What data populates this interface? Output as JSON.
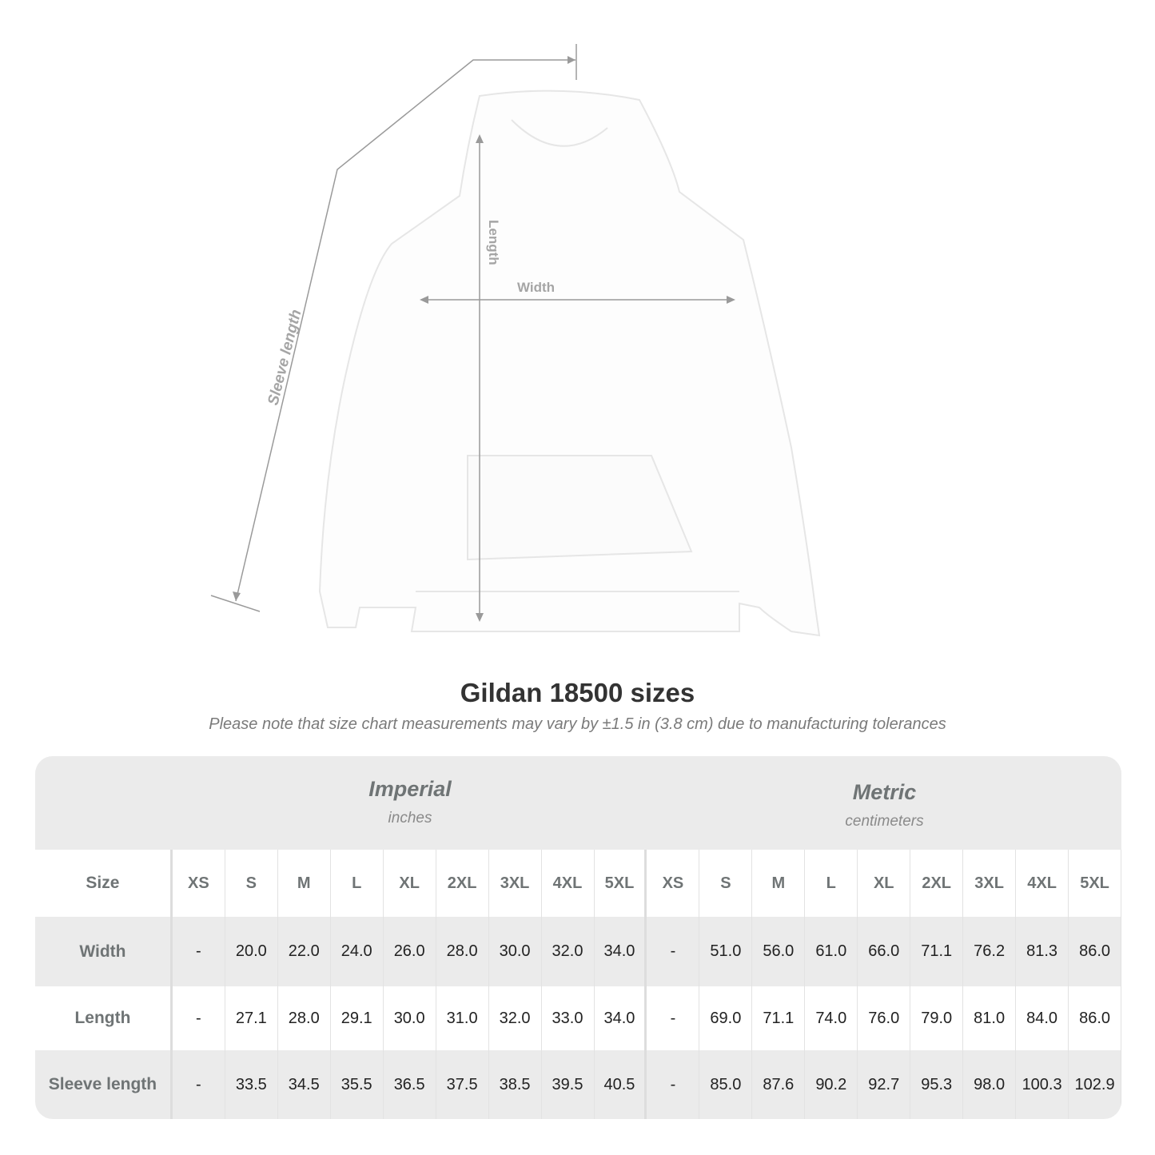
{
  "diagram": {
    "labels": {
      "sleeve": "Sleeve length",
      "length": "Length",
      "width": "Width"
    },
    "line_color": "#9a9a9a"
  },
  "title": "Gildan 18500 sizes",
  "note": "Please note that size chart measurements may vary by ±1.5 in (3.8 cm) due to manufacturing tolerances",
  "table": {
    "imperial": {
      "name": "Imperial",
      "unit": "inches"
    },
    "metric": {
      "name": "Metric",
      "unit": "centimeters"
    },
    "size_label": "Size",
    "sizes": [
      "XS",
      "S",
      "M",
      "L",
      "XL",
      "2XL",
      "3XL",
      "4XL",
      "5XL"
    ],
    "rows": [
      {
        "label": "Width",
        "imperial": [
          "-",
          "20.0",
          "22.0",
          "24.0",
          "26.0",
          "28.0",
          "30.0",
          "32.0",
          "34.0"
        ],
        "metric": [
          "-",
          "51.0",
          "56.0",
          "61.0",
          "66.0",
          "71.1",
          "76.2",
          "81.3",
          "86.0"
        ]
      },
      {
        "label": "Length",
        "imperial": [
          "-",
          "27.1",
          "28.0",
          "29.1",
          "30.0",
          "31.0",
          "32.0",
          "33.0",
          "34.0"
        ],
        "metric": [
          "-",
          "69.0",
          "71.1",
          "74.0",
          "76.0",
          "79.0",
          "81.0",
          "84.0",
          "86.0"
        ]
      },
      {
        "label": "Sleeve length",
        "imperial": [
          "-",
          "33.5",
          "34.5",
          "35.5",
          "36.5",
          "37.5",
          "38.5",
          "39.5",
          "40.5"
        ],
        "metric": [
          "-",
          "85.0",
          "87.6",
          "90.2",
          "92.7",
          "95.3",
          "98.0",
          "100.3",
          "102.9"
        ]
      }
    ]
  }
}
